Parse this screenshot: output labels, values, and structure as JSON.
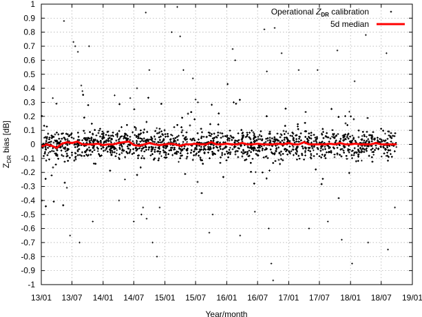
{
  "chart_data": {
    "type": "scatter",
    "xlabel": "Year/month",
    "ylabel_parts": [
      "Z",
      "DR",
      " bias [dB]"
    ],
    "x_ticks": [
      "13/01",
      "13/07",
      "14/01",
      "14/07",
      "15/01",
      "15/07",
      "16/01",
      "16/07",
      "17/01",
      "17/07",
      "18/01",
      "18/07",
      "19/01"
    ],
    "xlim": [
      "2013-01-01",
      "2019-01-01"
    ],
    "ylim": [
      -1,
      1
    ],
    "y_ticks": [
      -1,
      -0.9,
      -0.8,
      -0.7,
      -0.6,
      -0.5,
      -0.4,
      -0.3,
      -0.2,
      -0.1,
      0,
      0.1,
      0.2,
      0.3,
      0.4,
      0.5,
      0.6,
      0.7,
      0.8,
      0.9,
      1
    ],
    "grid": true,
    "legend_position": "top-right",
    "series": [
      {
        "legend_parts": [
          "Operational ",
          "Z",
          "DR",
          " calibration"
        ],
        "kind": "points",
        "color": "#000000",
        "date_range": [
          "2013-01-01",
          "2018-09-30"
        ],
        "core_spread_db": 0.05,
        "outliers": [
          {
            "x": "2013-01-05",
            "y": -0.4
          },
          {
            "x": "2013-03-10",
            "y": 0.33
          },
          {
            "x": "2013-05-15",
            "y": 0.88
          },
          {
            "x": "2013-06-01",
            "y": -0.31
          },
          {
            "x": "2013-06-20",
            "y": -0.65
          },
          {
            "x": "2013-07-10",
            "y": 0.73
          },
          {
            "x": "2013-07-20",
            "y": 0.7
          },
          {
            "x": "2013-08-05",
            "y": 0.66
          },
          {
            "x": "2013-08-15",
            "y": -0.7
          },
          {
            "x": "2013-08-25",
            "y": 0.42
          },
          {
            "x": "2013-09-01",
            "y": 0.38
          },
          {
            "x": "2013-10-10",
            "y": 0.7
          },
          {
            "x": "2013-11-01",
            "y": -0.55
          },
          {
            "x": "2014-03-10",
            "y": 0.35
          },
          {
            "x": "2014-04-05",
            "y": -0.4
          },
          {
            "x": "2014-05-10",
            "y": -0.25
          },
          {
            "x": "2014-06-10",
            "y": 0.33
          },
          {
            "x": "2014-07-01",
            "y": -0.55
          },
          {
            "x": "2014-07-20",
            "y": 0.4
          },
          {
            "x": "2014-08-15",
            "y": -0.5
          },
          {
            "x": "2014-08-25",
            "y": -0.45
          },
          {
            "x": "2014-09-10",
            "y": 0.94
          },
          {
            "x": "2014-09-15",
            "y": -0.53
          },
          {
            "x": "2014-10-01",
            "y": 0.53
          },
          {
            "x": "2014-10-20",
            "y": -0.7
          },
          {
            "x": "2014-11-15",
            "y": -0.8
          },
          {
            "x": "2014-12-01",
            "y": -0.45
          },
          {
            "x": "2015-02-10",
            "y": 0.8
          },
          {
            "x": "2015-04-01",
            "y": 0.77
          },
          {
            "x": "2015-03-15",
            "y": 0.98
          },
          {
            "x": "2015-04-20",
            "y": 0.53
          },
          {
            "x": "2015-06-15",
            "y": 0.47
          },
          {
            "x": "2015-07-01",
            "y": 0.32
          },
          {
            "x": "2015-07-15",
            "y": 0.3
          },
          {
            "x": "2015-09-20",
            "y": -0.63
          },
          {
            "x": "2015-10-10",
            "y": -0.5
          },
          {
            "x": "2016-02-05",
            "y": 0.68
          },
          {
            "x": "2016-02-20",
            "y": 0.6
          },
          {
            "x": "2016-03-20",
            "y": -0.65
          },
          {
            "x": "2016-06-15",
            "y": -0.48
          },
          {
            "x": "2016-08-10",
            "y": 0.82
          },
          {
            "x": "2016-08-25",
            "y": 0.52
          },
          {
            "x": "2016-09-05",
            "y": -0.6
          },
          {
            "x": "2016-09-20",
            "y": -0.85
          },
          {
            "x": "2016-10-01",
            "y": -0.97
          },
          {
            "x": "2016-10-10",
            "y": 0.83
          },
          {
            "x": "2016-11-20",
            "y": 0.65
          },
          {
            "x": "2017-03-01",
            "y": 0.53
          },
          {
            "x": "2017-05-01",
            "y": -0.6
          },
          {
            "x": "2017-06-20",
            "y": 0.53
          },
          {
            "x": "2017-08-20",
            "y": -0.55
          },
          {
            "x": "2017-10-15",
            "y": 0.67
          },
          {
            "x": "2017-11-10",
            "y": -0.68
          },
          {
            "x": "2018-01-10",
            "y": -0.85
          },
          {
            "x": "2018-01-25",
            "y": 0.45
          },
          {
            "x": "2018-04-01",
            "y": 0.78
          },
          {
            "x": "2018-04-15",
            "y": -0.7
          },
          {
            "x": "2018-08-01",
            "y": 0.65
          },
          {
            "x": "2018-08-10",
            "y": -0.75
          },
          {
            "x": "2018-09-20",
            "y": -0.45
          }
        ]
      },
      {
        "legend_text": "5d median",
        "kind": "line",
        "color": "#ff0000",
        "date_range": [
          "2013-01-01",
          "2018-09-30"
        ],
        "y": [
          -0.015,
          0.0,
          -0.01,
          -0.025,
          0.005,
          0.015,
          0.01,
          0.02,
          0.0,
          0.0,
          0.0,
          0.005,
          -0.005,
          0.0,
          0.0,
          0.01,
          0.015,
          0.02,
          -0.005,
          -0.01,
          0.0,
          0.01,
          0.0,
          -0.005,
          0.0,
          0.005,
          0.0,
          -0.01,
          0.0,
          0.0,
          0.005,
          0.0,
          0.0,
          0.015,
          0.0,
          0.0,
          0.005,
          0.0,
          0.0,
          0.01,
          0.0,
          0.0,
          0.005,
          0.0,
          0.0,
          0.0,
          0.005,
          0.0,
          0.01,
          0.0,
          0.0,
          0.015,
          0.0,
          0.0,
          0.0,
          0.0,
          0.005,
          0.0,
          0.01,
          0.0,
          0.0,
          0.005,
          0.0,
          0.0,
          0.0,
          0.01,
          0.0,
          0.0,
          0.0,
          0.0
        ]
      }
    ]
  }
}
